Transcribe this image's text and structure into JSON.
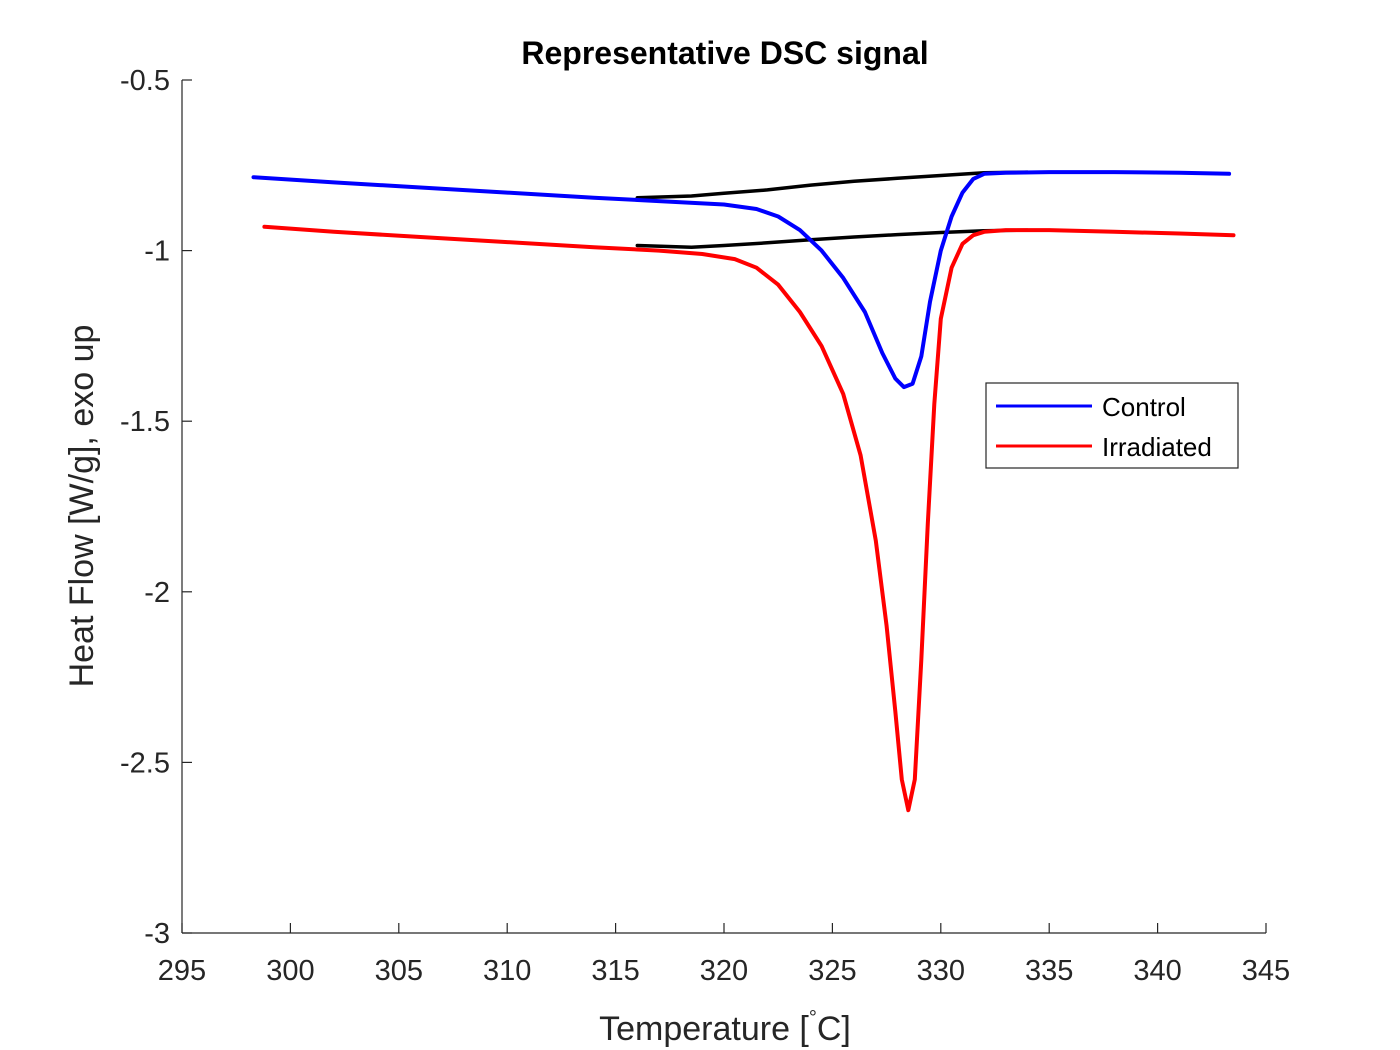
{
  "chart_data": {
    "type": "line",
    "title": "Representative DSC signal",
    "xlabel": "Temperature [",
    "xlabel_degree": "°",
    "xlabel_unit": "C]",
    "ylabel": "Heat Flow [W/g], exo up",
    "xlim": [
      295,
      345
    ],
    "ylim": [
      -3,
      -0.5
    ],
    "xticks": [
      295,
      300,
      305,
      310,
      315,
      320,
      325,
      330,
      335,
      340,
      345
    ],
    "yticks": [
      -3,
      -2.5,
      -2,
      -1.5,
      -1,
      -0.5
    ],
    "ytick_labels": [
      "-3",
      "-2.5",
      "-2",
      "-1.5",
      "-1",
      "-0.5"
    ],
    "legend_position": "right",
    "series": [
      {
        "name": "Control",
        "color": "#0000ff",
        "x": [
          298.3,
          302,
          306,
          310,
          314,
          317,
          320,
          321.5,
          322.5,
          323.5,
          324.5,
          325.5,
          326.5,
          327.3,
          327.9,
          328.3,
          328.7,
          329.1,
          329.5,
          330,
          330.5,
          331,
          331.5,
          332,
          333,
          335,
          338,
          341,
          343.3
        ],
        "y": [
          -0.785,
          -0.8,
          -0.815,
          -0.83,
          -0.845,
          -0.855,
          -0.865,
          -0.878,
          -0.9,
          -0.94,
          -1.0,
          -1.08,
          -1.18,
          -1.3,
          -1.375,
          -1.4,
          -1.39,
          -1.31,
          -1.15,
          -1.0,
          -0.9,
          -0.83,
          -0.79,
          -0.775,
          -0.772,
          -0.77,
          -0.77,
          -0.772,
          -0.775
        ]
      },
      {
        "name": "Irradiated",
        "color": "#ff0000",
        "x": [
          298.8,
          302,
          306,
          310,
          314,
          317,
          319,
          320.5,
          321.5,
          322.5,
          323.5,
          324.5,
          325.5,
          326.3,
          327,
          327.5,
          327.9,
          328.2,
          328.5,
          328.8,
          329.1,
          329.4,
          329.7,
          330,
          330.5,
          331,
          331.5,
          332,
          333,
          335,
          338,
          341,
          343.5
        ],
        "y": [
          -0.93,
          -0.945,
          -0.96,
          -0.975,
          -0.99,
          -1.0,
          -1.01,
          -1.025,
          -1.05,
          -1.1,
          -1.18,
          -1.28,
          -1.42,
          -1.6,
          -1.85,
          -2.1,
          -2.35,
          -2.55,
          -2.64,
          -2.55,
          -2.2,
          -1.8,
          -1.45,
          -1.2,
          -1.05,
          -0.98,
          -0.955,
          -0.945,
          -0.94,
          -0.94,
          -0.945,
          -0.95,
          -0.955
        ]
      },
      {
        "color": "#000000",
        "x": [
          316,
          318.5,
          320,
          322,
          324,
          326,
          328,
          330,
          332,
          334
        ],
        "y": [
          -0.845,
          -0.84,
          -0.832,
          -0.822,
          -0.808,
          -0.797,
          -0.788,
          -0.78,
          -0.772,
          -0.77
        ]
      },
      {
        "color": "#000000",
        "x": [
          316,
          318.5,
          320,
          322,
          324,
          326,
          328,
          330,
          332,
          334
        ],
        "y": [
          -0.985,
          -0.99,
          -0.985,
          -0.977,
          -0.968,
          -0.96,
          -0.953,
          -0.947,
          -0.942,
          -0.94
        ]
      }
    ]
  }
}
